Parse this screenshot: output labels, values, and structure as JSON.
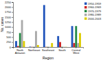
{
  "chart_data": {
    "type": "bar",
    "xlabel": "Region",
    "ylabel": "No. cases",
    "categories": [
      "North\nAmazon",
      "Northeast",
      "Southeast",
      "South",
      "Central\nWest"
    ],
    "series": [
      {
        "name": "1950-1959",
        "color": "#2255bb",
        "values": [
          300,
          20,
          2100,
          550,
          1050
        ]
      },
      {
        "name": "1960-1969",
        "color": "#cc2222",
        "values": [
          50,
          10,
          10,
          250,
          200
        ]
      },
      {
        "name": "1970-1979",
        "color": "#228844",
        "values": [
          700,
          10,
          10,
          10,
          1050
        ]
      },
      {
        "name": "1980-1989",
        "color": "#aaaaaa",
        "values": [
          1350,
          800,
          10,
          10,
          200
        ]
      },
      {
        "name": "2000-2003",
        "color": "#ddcc00",
        "values": [
          300,
          100,
          200,
          10,
          700
        ]
      }
    ],
    "ylim": [
      0,
      2250
    ],
    "yticks": [
      0,
      250,
      500,
      750,
      1000,
      1250,
      1500,
      1750,
      2000,
      2250
    ],
    "grid": false,
    "legend": "upper right"
  }
}
